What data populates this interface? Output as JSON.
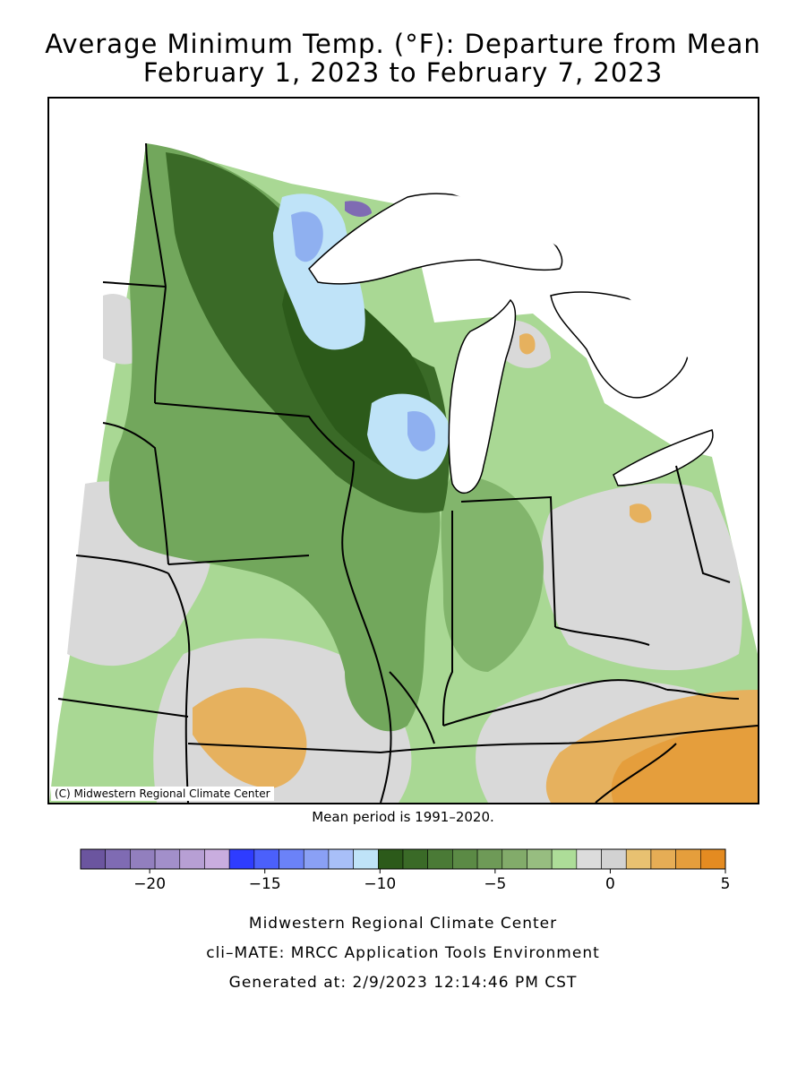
{
  "title": {
    "line1": "Average Minimum Temp. (°F): Departure from Mean",
    "line2": "February 1, 2023 to February 7, 2023"
  },
  "map": {
    "copyright": "(C) Midwestern Regional Climate Center",
    "colors": {
      "dark_green": "#2c5a1a",
      "mid_green": "#5c9448",
      "light_green": "#a9d894",
      "gray": "#d9d9d9",
      "orange": "#e6b15e",
      "light_blue": "#bfe3f8",
      "blue": "#8fb0f0",
      "purple": "#7f6bb3",
      "boundary": "#000000",
      "water": "#ffffff"
    }
  },
  "mean_period": "Mean period is 1991–2020.",
  "legend": {
    "colors": [
      "#6b559f",
      "#7f6bb3",
      "#927fbe",
      "#a28fca",
      "#b79fd4",
      "#c9addf",
      "#2e3cff",
      "#4b60fb",
      "#6b82f8",
      "#8aa0f5",
      "#a8bff8",
      "#bfe3f8",
      "#2c5a1a",
      "#3a6a27",
      "#4a7a36",
      "#5b8a45",
      "#6e9a57",
      "#82ab6a",
      "#97bd80",
      "#addd98",
      "#dcdcdc",
      "#d2d2d2",
      "#e8c171",
      "#e6ad55",
      "#e59e3c",
      "#e48b21"
    ],
    "ticks": [
      {
        "label": "−20",
        "value": -20
      },
      {
        "label": "−15",
        "value": -15
      },
      {
        "label": "−10",
        "value": -10
      },
      {
        "label": "−5",
        "value": -5
      },
      {
        "label": "0",
        "value": 0
      },
      {
        "label": "5",
        "value": 5
      }
    ],
    "min": -23,
    "max": 5
  },
  "footer": {
    "line1": "Midwestern Regional Climate Center",
    "line2": "cli–MATE: MRCC Application Tools Environment",
    "line3": "Generated at: 2/9/2023 12:14:46 PM CST"
  }
}
